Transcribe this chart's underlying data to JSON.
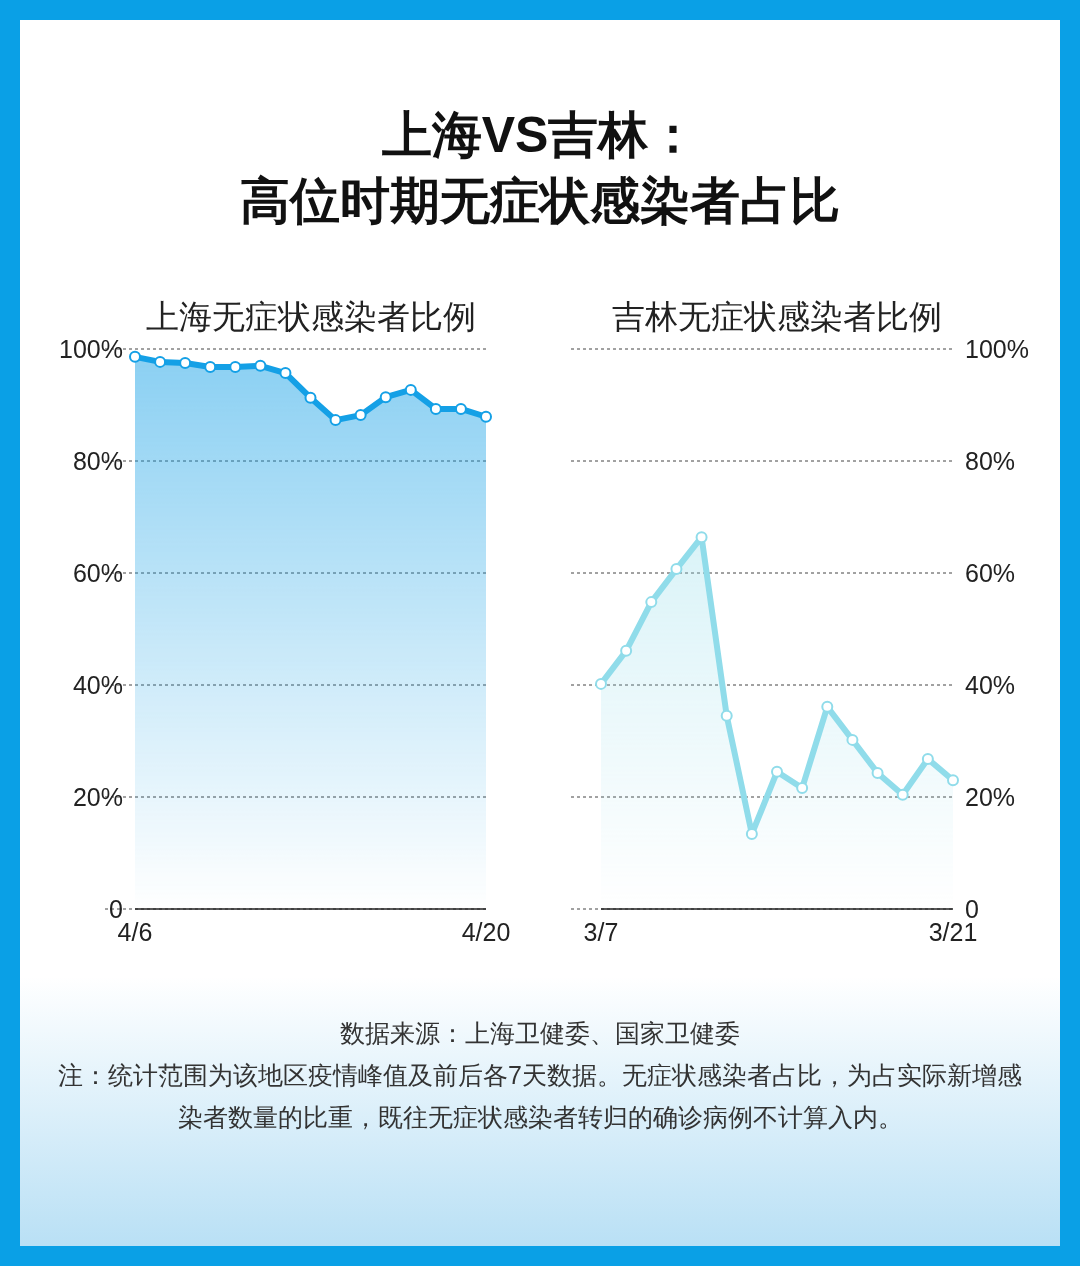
{
  "chart_data": [
    {
      "type": "other",
      "title": "上海VS吉林：",
      "subtitle": "高位时期无症状感染者占比"
    },
    {
      "type": "area",
      "title": "上海无症状感染者比例",
      "categories": [
        "4/6",
        null,
        null,
        null,
        null,
        null,
        null,
        null,
        null,
        null,
        null,
        null,
        null,
        null,
        "4/20"
      ],
      "series": [
        {
          "color": "#14a0e6",
          "values": [
            98.6,
            97.7,
            97.5,
            96.8,
            96.8,
            97.0,
            95.7,
            91.3,
            87.3,
            88.2,
            91.4,
            92.7,
            89.3,
            89.3,
            87.9
          ]
        }
      ],
      "ylim": [
        0,
        100
      ],
      "yticks": [
        0,
        {
          "value": 20,
          "label": "20%"
        },
        {
          "value": 40,
          "label": "40%"
        },
        {
          "value": 60,
          "label": "60%"
        },
        {
          "value": 80,
          "label": "80%"
        },
        {
          "value": 100,
          "label": "100%"
        }
      ],
      "grid": "y",
      "marker": "circle",
      "line_style": "solid"
    },
    {
      "type": "area",
      "title": "吉林无症状感染者比例",
      "categories": [
        "3/7",
        null,
        null,
        null,
        null,
        null,
        null,
        null,
        null,
        null,
        null,
        null,
        null,
        null,
        "3/21"
      ],
      "series": [
        {
          "color": "#90dcea",
          "axis": "y2",
          "values": [
            40.2,
            46.1,
            54.8,
            60.7,
            66.4,
            34.5,
            13.4,
            24.5,
            21.6,
            36.1,
            30.2,
            24.3,
            20.4,
            26.8,
            23.0
          ]
        }
      ],
      "y2lim": [
        0,
        100
      ],
      "y2ticks": [
        0,
        {
          "value": 20,
          "label": "20%"
        },
        {
          "value": 40,
          "label": "40%"
        },
        {
          "value": 60,
          "label": "60%"
        },
        {
          "value": 80,
          "label": "80%"
        },
        {
          "value": 100,
          "label": "100%"
        }
      ],
      "grid": "y",
      "marker": "circle",
      "line_style": "solid"
    },
    {
      "type": "other",
      "annotations": [
        "数据来源：上海卫健委、国家卫健委",
        "注：统计范围为该地区疫情峰值及前后各7天数据。无症状感染者占比，为占实际新增感染者数量的比重，既往无症状感染者转归的确诊病例不计算入内。"
      ]
    }
  ]
}
